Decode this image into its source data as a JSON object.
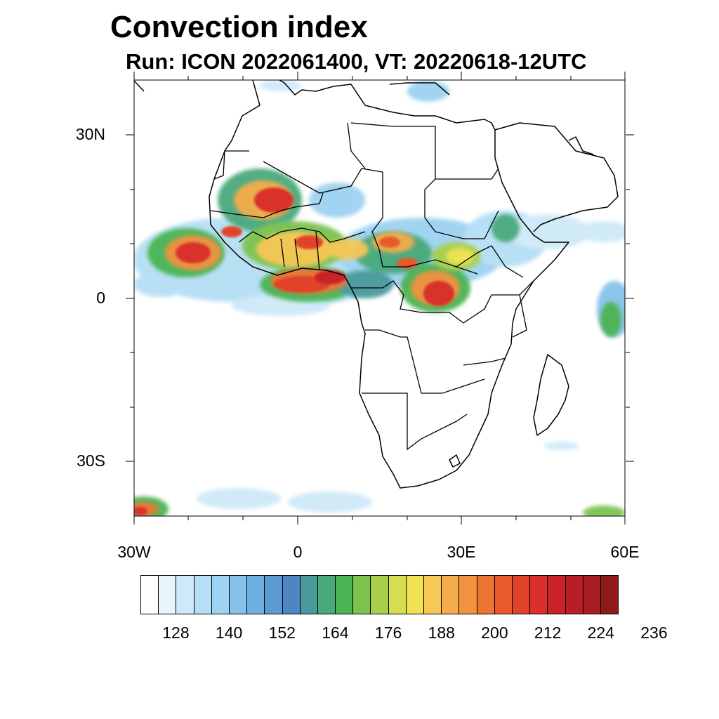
{
  "title": "Convection index",
  "subtitle": "Run: ICON 2022061400,  VT: 20220618-12UTC",
  "axes": {
    "y_labels": [
      "30N",
      "0",
      "30S"
    ],
    "x_labels": [
      "30W",
      "0",
      "30E",
      "60E"
    ],
    "extent": {
      "lon": [
        -30,
        60
      ],
      "lat": [
        -40,
        40
      ]
    }
  },
  "colorbar": {
    "colors": [
      "#ffffff",
      "#e8f4fb",
      "#cfe9f8",
      "#b5dff4",
      "#9dd2f1",
      "#86c1ea",
      "#6eb0e1",
      "#5b9ad3",
      "#4d86c2",
      "#4a9a9c",
      "#48a97b",
      "#4cb453",
      "#7cc24f",
      "#a9cf4d",
      "#d6dc53",
      "#f1e254",
      "#f7c854",
      "#f5ad4b",
      "#f2923f",
      "#ee7434",
      "#e85a2c",
      "#e1432a",
      "#d9302b",
      "#c92229",
      "#b91e25",
      "#a61c21",
      "#8e1a1c"
    ],
    "labels": [
      "128",
      "140",
      "152",
      "164",
      "176",
      "188",
      "200",
      "212",
      "224",
      "236"
    ]
  }
}
